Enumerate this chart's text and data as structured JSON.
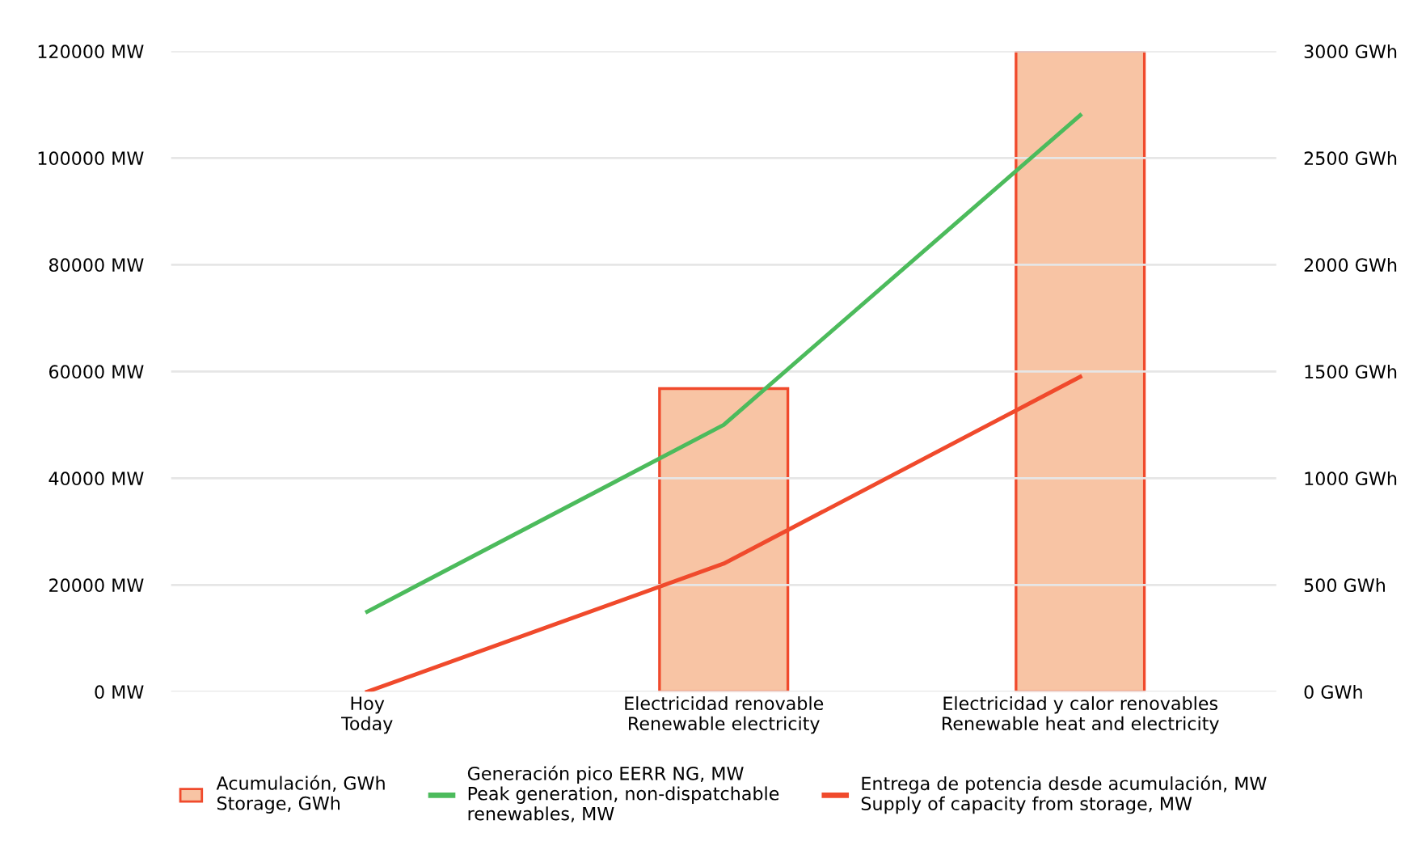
{
  "chart_data": {
    "type": "bar",
    "categories": [
      "Hoy\nToday",
      "Electricidad renovable\nRenewable electricity",
      "Electricidad y calor renovables\nRenewable heat and electricity"
    ],
    "series": [
      {
        "name": "Acumulación, GWh\nStorage, GWh",
        "axis": "y2",
        "color": "#f8c4a4",
        "values": [
          null,
          1420,
          3000
        ]
      },
      {
        "name": "Generación pico EERR NG, MW\nPeak generation, non-dispatchable\nrenewables, MW",
        "type": "line",
        "color": "#4cbb5c",
        "values": [
          15000,
          50000,
          108000
        ]
      },
      {
        "name": "Entrega de potencia desde acumulación, MW\nSupply of capacity from storage, MW",
        "type": "line",
        "color": "#f04a2c",
        "values": [
          0,
          24000,
          59000
        ]
      }
    ],
    "ylim": [
      0,
      120000
    ],
    "yticks": [
      {
        "value": 0,
        "label": "0 MW"
      },
      {
        "value": 20000,
        "label": "20000 MW"
      },
      {
        "value": 40000,
        "label": "40000 MW"
      },
      {
        "value": 60000,
        "label": "60000 MW"
      },
      {
        "value": 80000,
        "label": "80000 MW"
      },
      {
        "value": 100000,
        "label": "100000 MW"
      },
      {
        "value": 120000,
        "label": "120000 MW"
      }
    ],
    "y2lim": [
      0,
      3000
    ],
    "y2ticks": [
      {
        "value": 0,
        "label": "0 GWh"
      },
      {
        "value": 500,
        "label": "500 GWh"
      },
      {
        "value": 1000,
        "label": "1000 GWh"
      },
      {
        "value": 1500,
        "label": "1500 GWh"
      },
      {
        "value": 2000,
        "label": "2000 GWh"
      },
      {
        "value": 2500,
        "label": "2500 GWh"
      },
      {
        "value": 3000,
        "label": "3000 GWh"
      }
    ],
    "grid": "y",
    "legend": "bottom",
    "marker": "none",
    "line_style": "solid"
  }
}
